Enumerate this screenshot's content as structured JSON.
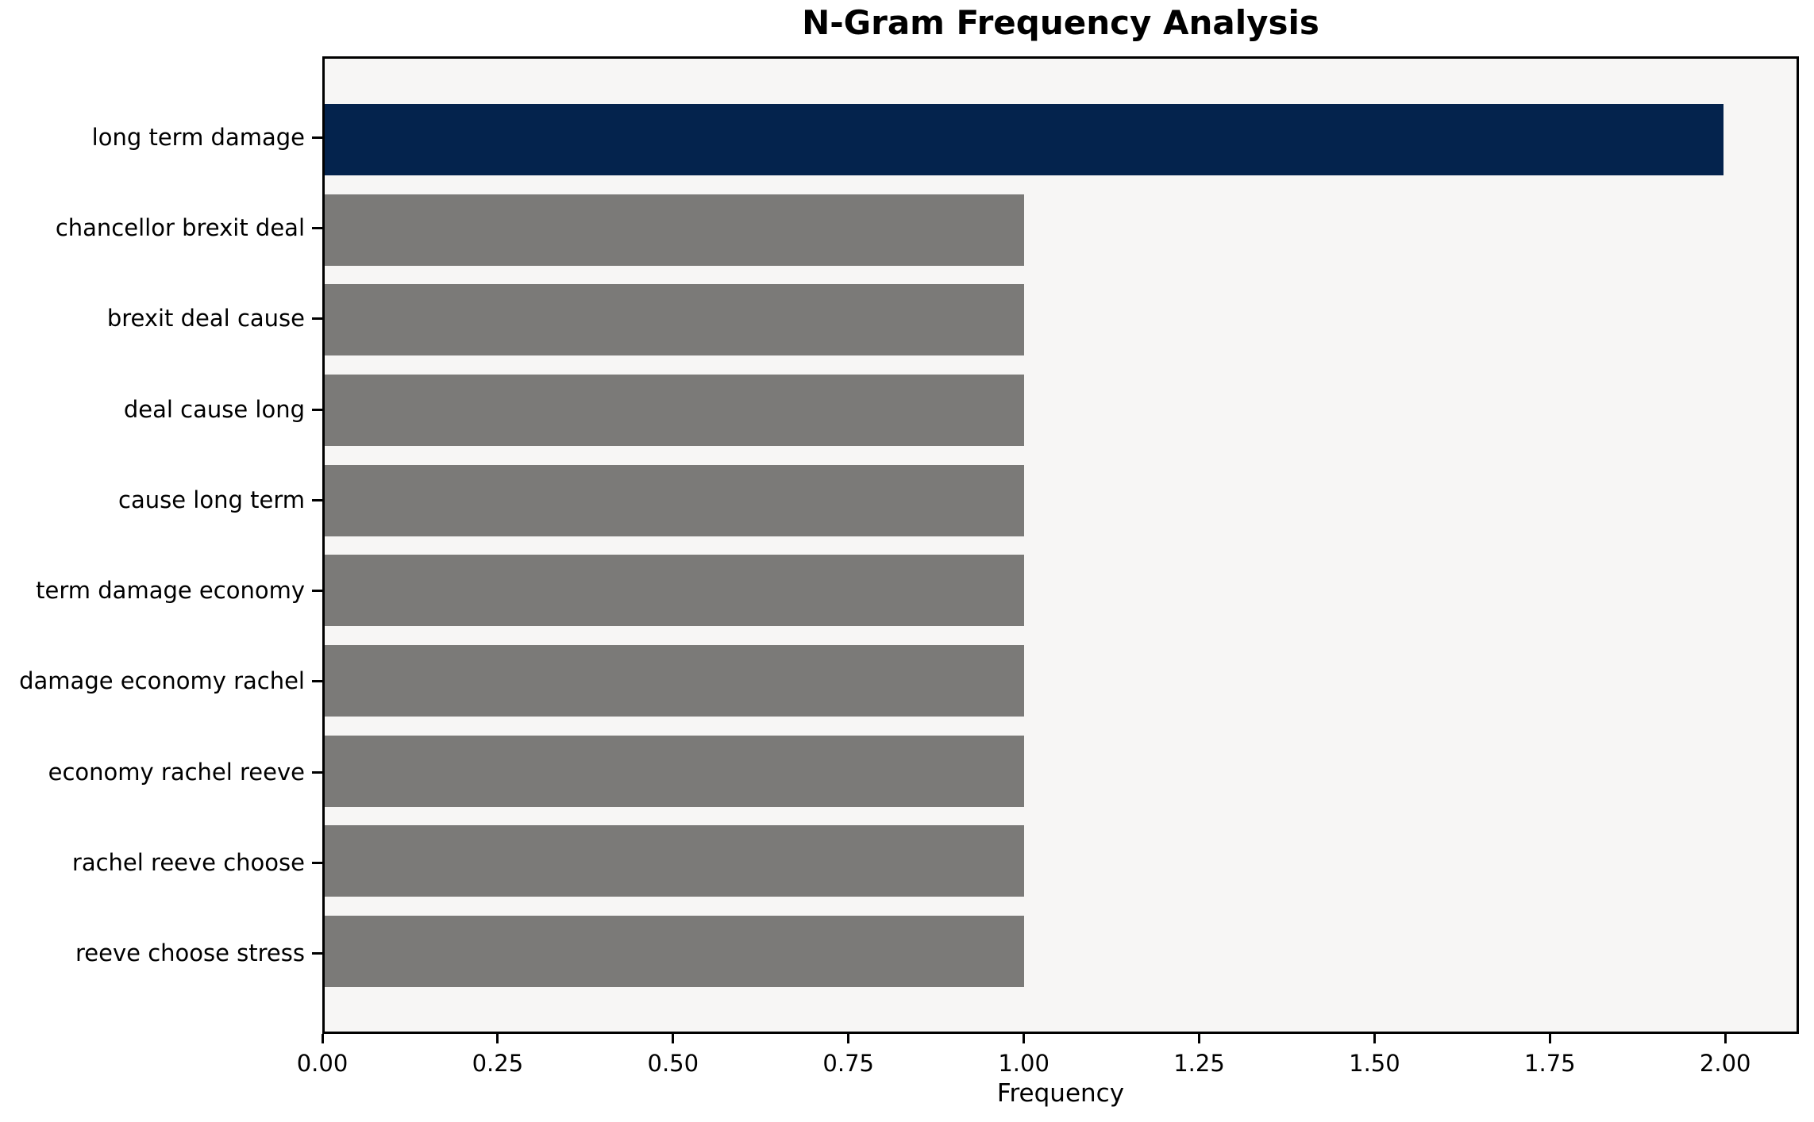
{
  "chart_data": {
    "type": "bar",
    "orientation": "horizontal",
    "title": "N-Gram Frequency Analysis",
    "xlabel": "Frequency",
    "ylabel": "",
    "categories": [
      "long term damage",
      "chancellor brexit deal",
      "brexit deal cause",
      "deal cause long",
      "cause long term",
      "term damage economy",
      "damage economy rachel",
      "economy rachel reeve",
      "rachel reeve choose",
      "reeve choose stress"
    ],
    "values": [
      2,
      1,
      1,
      1,
      1,
      1,
      1,
      1,
      1,
      1
    ],
    "bar_colors": [
      "#04234d",
      "#7b7a78",
      "#7b7a78",
      "#7b7a78",
      "#7b7a78",
      "#7b7a78",
      "#7b7a78",
      "#7b7a78",
      "#7b7a78",
      "#7b7a78"
    ],
    "xlim": [
      0,
      2.105
    ],
    "xticks": [
      0.0,
      0.25,
      0.5,
      0.75,
      1.0,
      1.25,
      1.5,
      1.75,
      2.0
    ],
    "xtick_labels": [
      "0.00",
      "0.25",
      "0.50",
      "0.75",
      "1.00",
      "1.25",
      "1.50",
      "1.75",
      "2.00"
    ],
    "grid": false,
    "legend_position": "none",
    "colors": {
      "highlight_bar": "#04234d",
      "default_bar": "#7b7a78",
      "plot_background": "#f7f6f5",
      "figure_background": "#ffffff",
      "spine": "#000000",
      "text": "#000000"
    }
  }
}
